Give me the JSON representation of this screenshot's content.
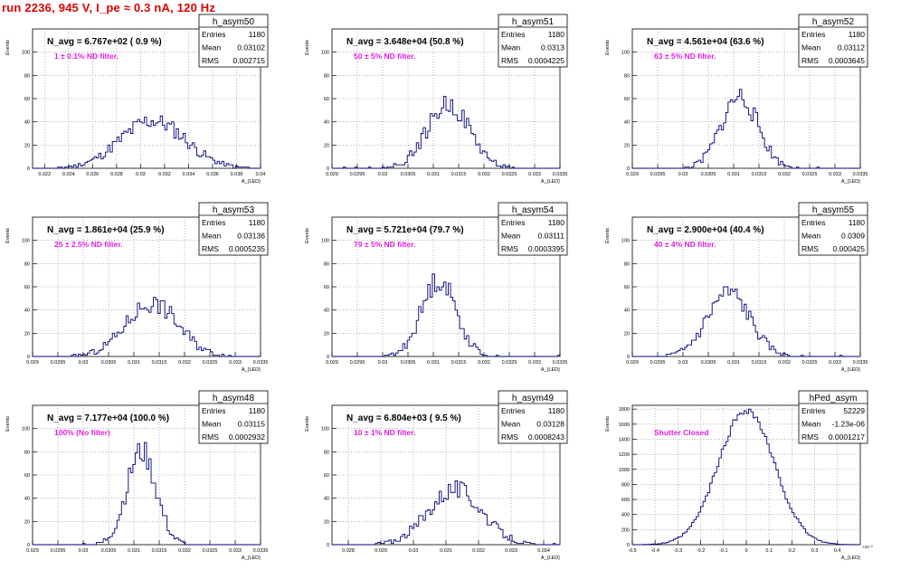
{
  "header": {
    "run_title": "run 2236,   945 V, I_pe ≈ 0.3 nA, 120 Hz"
  },
  "colors": {
    "title": "#e00000",
    "annotation": "#e020e0",
    "histogram": "#00007a",
    "grid": "#888888",
    "text": "#000000"
  },
  "stats_labels": {
    "entries": "Entries",
    "mean": "Mean",
    "rms": "RMS"
  },
  "chart_data": [
    {
      "type": "histogram",
      "name": "h_asym50",
      "title": "N_avg = 6.767e+02 ( 0.9 %)",
      "annotation": "1 ± 0.1% ND filter.",
      "stats": {
        "entries": "1180",
        "mean": "0.03102",
        "rms": "0.002715"
      },
      "xlabel": "A_{LED}",
      "ylabel": "Events",
      "xlim": [
        0.021,
        0.04
      ],
      "ylim": [
        0,
        120
      ],
      "xticks": [
        "0.022",
        "0.024",
        "0.026",
        "0.028",
        "0.03",
        "0.032",
        "0.034",
        "0.036",
        "0.038",
        "0.04"
      ],
      "yticks": [
        "0",
        "20",
        "40",
        "60",
        "80",
        "100"
      ],
      "grid": true,
      "mean": 0.03102,
      "sigma": 0.0027,
      "peak": 41,
      "seed": 11
    },
    {
      "type": "histogram",
      "name": "h_asym51",
      "title": "N_avg = 3.648e+04 (50.8 %)",
      "annotation": "50 ± 5% ND filter.",
      "stats": {
        "entries": "1180",
        "mean": "0.0313",
        "rms": "0.0004225"
      },
      "xlabel": "A_{LED}",
      "ylabel": "Events",
      "xlim": [
        0.029,
        0.0335
      ],
      "ylim": [
        0,
        120
      ],
      "xticks": [
        "0.029",
        "0.0295",
        "0.03",
        "0.0305",
        "0.031",
        "0.0315",
        "0.032",
        "0.0325",
        "0.033",
        "0.0335"
      ],
      "yticks": [
        "0",
        "20",
        "40",
        "60",
        "80",
        "100"
      ],
      "grid": true,
      "mean": 0.0313,
      "sigma": 0.00042,
      "peak": 55,
      "seed": 22
    },
    {
      "type": "histogram",
      "name": "h_asym52",
      "title": "N_avg = 4.561e+04 (63.6 %)",
      "annotation": "63 ± 5% ND filter.",
      "stats": {
        "entries": "1180",
        "mean": "0.03112",
        "rms": "0.0003645"
      },
      "xlabel": "A_{LED}",
      "ylabel": "Events",
      "xlim": [
        0.029,
        0.0335
      ],
      "ylim": [
        0,
        120
      ],
      "xticks": [
        "0.029",
        "0.0295",
        "0.03",
        "0.0305",
        "0.031",
        "0.0315",
        "0.032",
        "0.0325",
        "0.033",
        "0.0335"
      ],
      "yticks": [
        "0",
        "20",
        "40",
        "60",
        "80",
        "100"
      ],
      "grid": true,
      "mean": 0.03112,
      "sigma": 0.00036,
      "peak": 62,
      "seed": 33
    },
    {
      "type": "histogram",
      "name": "h_asym53",
      "title": "N_avg = 1.861e+04 (25.9 %)",
      "annotation": "25 ± 2.5% ND filter.",
      "stats": {
        "entries": "1180",
        "mean": "0.03136",
        "rms": "0.0005235"
      },
      "xlabel": "A_{LED}",
      "ylabel": "Events",
      "xlim": [
        0.029,
        0.0335
      ],
      "ylim": [
        0,
        120
      ],
      "xticks": [
        "0.029",
        "0.0295",
        "0.03",
        "0.0305",
        "0.031",
        "0.0315",
        "0.032",
        "0.0325",
        "0.033",
        "0.0335"
      ],
      "yticks": [
        "0",
        "20",
        "40",
        "60",
        "80",
        "100"
      ],
      "grid": true,
      "mean": 0.03136,
      "sigma": 0.00052,
      "peak": 46,
      "seed": 44
    },
    {
      "type": "histogram",
      "name": "h_asym54",
      "title": "N_avg = 5.721e+04 (79.7 %)",
      "annotation": "79 ± 5% ND filter.",
      "stats": {
        "entries": "1180",
        "mean": "0.03111",
        "rms": "0.0003395"
      },
      "xlabel": "A_{LED}",
      "ylabel": "Events",
      "xlim": [
        0.029,
        0.0335
      ],
      "ylim": [
        0,
        120
      ],
      "xticks": [
        "0.029",
        "0.0295",
        "0.03",
        "0.0305",
        "0.031",
        "0.0315",
        "0.032",
        "0.0325",
        "0.033",
        "0.0335"
      ],
      "yticks": [
        "0",
        "20",
        "40",
        "60",
        "80",
        "100"
      ],
      "grid": true,
      "mean": 0.03111,
      "sigma": 0.00034,
      "peak": 66,
      "seed": 55
    },
    {
      "type": "histogram",
      "name": "h_asym55",
      "title": "N_avg = 2.900e+04 (40.4 %)",
      "annotation": "40 ± 4% ND filter.",
      "stats": {
        "entries": "1180",
        "mean": "0.0309",
        "rms": "0.000425"
      },
      "xlabel": "A_{LED}",
      "ylabel": "Events",
      "xlim": [
        0.029,
        0.0335
      ],
      "ylim": [
        0,
        120
      ],
      "xticks": [
        "0.029",
        "0.0295",
        "0.03",
        "0.0305",
        "0.031",
        "0.0315",
        "0.032",
        "0.0325",
        "0.033",
        "0.0335"
      ],
      "yticks": [
        "0",
        "20",
        "40",
        "60",
        "80",
        "100"
      ],
      "grid": true,
      "mean": 0.0309,
      "sigma": 0.00042,
      "peak": 55,
      "seed": 66
    },
    {
      "type": "histogram",
      "name": "h_asym48",
      "title": "N_avg = 7.177e+04 (100.0 %)",
      "annotation": "100% (No filter)",
      "stats": {
        "entries": "1180",
        "mean": "0.03115",
        "rms": "0.0002932"
      },
      "xlabel": "A_{LED}",
      "ylabel": "Events",
      "xlim": [
        0.029,
        0.0335
      ],
      "ylim": [
        0,
        120
      ],
      "xticks": [
        "0.029",
        "0.0295",
        "0.03",
        "0.0305",
        "0.031",
        "0.0315",
        "0.032",
        "0.0325",
        "0.033",
        "0.0335"
      ],
      "yticks": [
        "0",
        "20",
        "40",
        "60",
        "80",
        "100"
      ],
      "grid": true,
      "mean": 0.03115,
      "sigma": 0.00029,
      "peak": 80,
      "seed": 77
    },
    {
      "type": "histogram",
      "name": "h_asym49",
      "title": "N_avg = 6.804e+03 ( 9.5 %)",
      "annotation": "10 ± 1% ND filter.",
      "stats": {
        "entries": "1180",
        "mean": "0.03128",
        "rms": "0.0008243"
      },
      "xlabel": "A_{LED}",
      "ylabel": "Events",
      "xlim": [
        0.0275,
        0.0345
      ],
      "ylim": [
        0,
        120
      ],
      "xticks": [
        "0.028",
        "0.029",
        "0.03",
        "0.031",
        "0.032",
        "0.033",
        "0.034"
      ],
      "yticks": [
        "0",
        "20",
        "40",
        "60",
        "80",
        "100"
      ],
      "grid": true,
      "mean": 0.03128,
      "sigma": 0.00082,
      "peak": 48,
      "seed": 88
    },
    {
      "type": "histogram",
      "name": "hPed_asym",
      "title": "",
      "annotation": "Shutter Closed",
      "stats": {
        "entries": "52229",
        "mean": "-1.23e-06",
        "rms": "0.0001217"
      },
      "xlabel": "A_{LED}",
      "ylabel": "Events",
      "xlim": [
        -0.5,
        0.5
      ],
      "ylim": [
        0,
        1850
      ],
      "xticks": [
        "-0.5",
        "-0.4",
        "-0.3",
        "-0.2",
        "-0.1",
        "0",
        "0.1",
        "0.2",
        "0.3",
        "0.4"
      ],
      "yticks": [
        "0",
        "200",
        "400",
        "600",
        "800",
        "1000",
        "1200",
        "1400",
        "1600",
        "1800"
      ],
      "grid": true,
      "xexponent": "×10⁻³",
      "mean": 0.0,
      "sigma": 0.1217,
      "peak": 1790,
      "seed": 99
    }
  ]
}
